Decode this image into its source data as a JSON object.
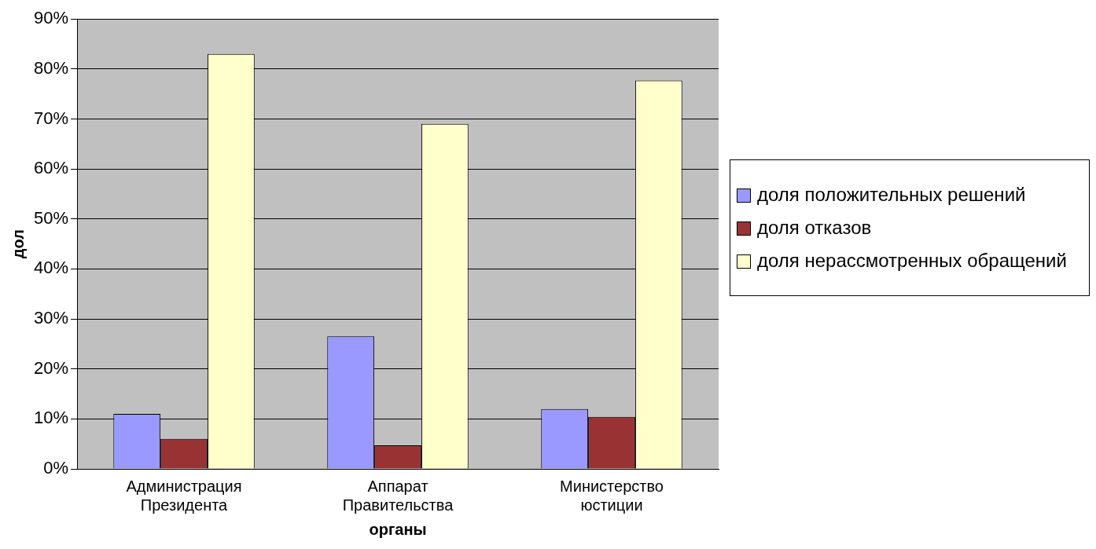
{
  "chart_data": {
    "type": "bar",
    "xlabel": "органы",
    "ylabel": "дол",
    "categories": [
      "Администрация Президента",
      "Аппарат Правительства",
      "Министерство юстиции"
    ],
    "series": [
      {
        "name": "доля положительных решений",
        "color": "#9999ff",
        "values": [
          11,
          26.5,
          12
        ]
      },
      {
        "name": "доля отказов",
        "color": "#993333",
        "values": [
          6,
          4.7,
          10.4
        ]
      },
      {
        "name": "доля нерассмотренных обращений",
        "color": "#ffffcc",
        "values": [
          83,
          69,
          77.7
        ]
      }
    ],
    "ylim": [
      0,
      90
    ],
    "yticks": [
      {
        "value": 0,
        "label": "0%"
      },
      {
        "value": 10,
        "label": "10%"
      },
      {
        "value": 20,
        "label": "20%"
      },
      {
        "value": 30,
        "label": "30%"
      },
      {
        "value": 40,
        "label": "40%"
      },
      {
        "value": 50,
        "label": "50%"
      },
      {
        "value": 60,
        "label": "60%"
      },
      {
        "value": 70,
        "label": "70%"
      },
      {
        "value": 80,
        "label": "80%"
      },
      {
        "value": 90,
        "label": "90%"
      }
    ],
    "grid": "y",
    "legend": "right"
  }
}
